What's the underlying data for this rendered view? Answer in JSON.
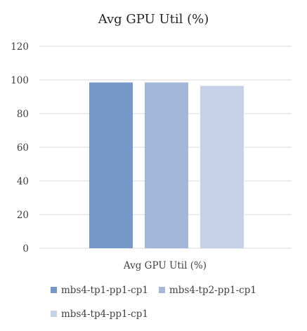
{
  "chart_data": {
    "type": "bar",
    "title": "Avg GPU Util (%)",
    "xlabel": "",
    "ylabel": "",
    "categories": [
      "Avg GPU Util (%)"
    ],
    "series": [
      {
        "name": "mbs4-tp1-pp1-cp1",
        "values": [
          98.5
        ],
        "color": "#7698c9"
      },
      {
        "name": "mbs4-tp2-pp1-cp1",
        "values": [
          98.5
        ],
        "color": "#a3b7d9"
      },
      {
        "name": "mbs4-tp4-pp1-cp1",
        "values": [
          96.5
        ],
        "color": "#c5d1e6"
      }
    ],
    "ylim": [
      0,
      120
    ],
    "yticks": [
      "0",
      "20",
      "40",
      "60",
      "80",
      "100",
      "120"
    ],
    "grid": true,
    "legend_position": "bottom"
  }
}
